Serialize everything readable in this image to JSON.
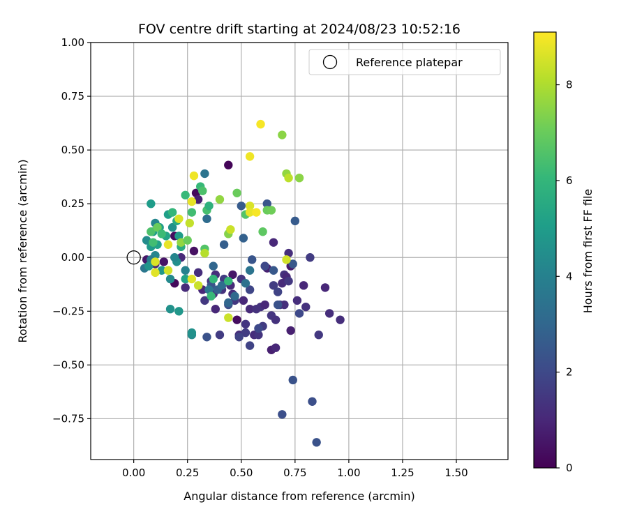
{
  "chart_data": {
    "type": "scatter",
    "title": "FOV centre drift starting at 2024/08/23 10:52:16",
    "xlabel": "Angular distance from reference (arcmin)",
    "ylabel": "Rotation from reference (arcmin)",
    "xlim": [
      -0.2,
      1.74
    ],
    "ylim": [
      -0.94,
      1.0
    ],
    "xticks": [
      "0.00",
      "0.25",
      "0.50",
      "0.75",
      "1.00",
      "1.25",
      "1.50"
    ],
    "yticks": [
      "−0.75",
      "−0.50",
      "−0.25",
      "0.00",
      "0.25",
      "0.50",
      "0.75",
      "1.00"
    ],
    "xtick_values": [
      0,
      0.25,
      0.5,
      0.75,
      1.0,
      1.25,
      1.5
    ],
    "ytick_values": [
      -0.75,
      -0.5,
      -0.25,
      0,
      0.25,
      0.5,
      0.75,
      1.0
    ],
    "grid": true,
    "legend": {
      "placement": "top-right",
      "entries": [
        "Reference platepar"
      ]
    },
    "reference_point": {
      "x": 0,
      "y": 0
    },
    "colorbar": {
      "label": "Hours from first FF file",
      "min": 0,
      "max": 9.1,
      "ticks": [
        "0",
        "2",
        "4",
        "6",
        "8"
      ],
      "tick_values": [
        0,
        2,
        4,
        6,
        8
      ],
      "colormap": "viridis"
    },
    "points": [
      [
        0.06,
        -0.01,
        0.6
      ],
      [
        0.1,
        -0.03,
        0.9
      ],
      [
        0.14,
        -0.02,
        0.5
      ],
      [
        0.19,
        -0.12,
        0.2
      ],
      [
        0.19,
        0.1,
        0.3
      ],
      [
        0.22,
        0.0,
        1.0
      ],
      [
        0.24,
        -0.14,
        1.1
      ],
      [
        0.28,
        0.03,
        0.4
      ],
      [
        0.29,
        0.3,
        0.2
      ],
      [
        0.3,
        0.27,
        0.8
      ],
      [
        0.3,
        -0.07,
        1.2
      ],
      [
        0.32,
        -0.15,
        1.0
      ],
      [
        0.33,
        -0.2,
        1.5
      ],
      [
        0.36,
        -0.11,
        1.3
      ],
      [
        0.37,
        -0.17,
        1.0
      ],
      [
        0.38,
        -0.08,
        1.2
      ],
      [
        0.38,
        -0.24,
        1.0
      ],
      [
        0.41,
        -0.15,
        1.3
      ],
      [
        0.42,
        -0.1,
        1.6
      ],
      [
        0.44,
        0.43,
        0.1
      ],
      [
        0.45,
        -0.13,
        1.1
      ],
      [
        0.46,
        -0.08,
        0.6
      ],
      [
        0.46,
        -0.17,
        1.2
      ],
      [
        0.47,
        -0.2,
        1.5
      ],
      [
        0.48,
        -0.29,
        0.3
      ],
      [
        0.49,
        -0.36,
        1.2
      ],
      [
        0.5,
        -0.1,
        1.4
      ],
      [
        0.51,
        -0.2,
        1.0
      ],
      [
        0.52,
        -0.31,
        1.4
      ],
      [
        0.52,
        -0.35,
        1.6
      ],
      [
        0.54,
        -0.41,
        1.8
      ],
      [
        0.54,
        -0.24,
        1.1
      ],
      [
        0.56,
        -0.36,
        1.2
      ],
      [
        0.57,
        -0.24,
        1.3
      ],
      [
        0.58,
        -0.36,
        1.4
      ],
      [
        0.59,
        -0.23,
        1.3
      ],
      [
        0.6,
        -0.32,
        1.6
      ],
      [
        0.61,
        -0.22,
        1.0
      ],
      [
        0.62,
        -0.05,
        0.8
      ],
      [
        0.64,
        -0.43,
        0.8
      ],
      [
        0.64,
        -0.27,
        1.4
      ],
      [
        0.65,
        0.07,
        1.0
      ],
      [
        0.65,
        -0.13,
        1.6
      ],
      [
        0.66,
        -0.42,
        1.0
      ],
      [
        0.66,
        -0.29,
        1.3
      ],
      [
        0.67,
        -0.16,
        1.8
      ],
      [
        0.68,
        -0.22,
        1.5
      ],
      [
        0.69,
        -0.12,
        1.1
      ],
      [
        0.7,
        -0.22,
        1.2
      ],
      [
        0.7,
        -0.08,
        1.3
      ],
      [
        0.71,
        -0.09,
        1.0
      ],
      [
        0.72,
        0.02,
        1.2
      ],
      [
        0.72,
        -0.11,
        1.5
      ],
      [
        0.73,
        -0.34,
        0.8
      ],
      [
        0.73,
        -0.04,
        0.7
      ],
      [
        0.76,
        -0.2,
        1.2
      ],
      [
        0.77,
        -0.26,
        2.0
      ],
      [
        0.79,
        -0.13,
        1.0
      ],
      [
        0.8,
        -0.23,
        1.3
      ],
      [
        0.82,
        -0.0,
        1.6
      ],
      [
        0.86,
        -0.36,
        1.5
      ],
      [
        0.89,
        -0.14,
        1.0
      ],
      [
        0.91,
        -0.26,
        1.2
      ],
      [
        0.96,
        -0.29,
        1.2
      ],
      [
        0.74,
        -0.57,
        2.3
      ],
      [
        0.83,
        -0.67,
        2.2
      ],
      [
        0.85,
        -0.86,
        2.3
      ],
      [
        0.69,
        -0.73,
        2.2
      ],
      [
        0.34,
        -0.37,
        2.3
      ],
      [
        0.4,
        -0.36,
        1.6
      ],
      [
        0.44,
        -0.22,
        2.2
      ],
      [
        0.49,
        -0.37,
        1.8
      ],
      [
        0.54,
        -0.15,
        1.9
      ],
      [
        0.55,
        -0.01,
        2.4
      ],
      [
        0.58,
        -0.33,
        2.0
      ],
      [
        0.61,
        -0.04,
        2.0
      ],
      [
        0.62,
        0.25,
        2.4
      ],
      [
        0.65,
        -0.06,
        2.5
      ],
      [
        0.67,
        -0.22,
        2.3
      ],
      [
        0.75,
        0.17,
        2.6
      ],
      [
        0.74,
        -0.03,
        2.5
      ],
      [
        0.5,
        0.24,
        2.6
      ],
      [
        0.51,
        0.09,
        2.8
      ],
      [
        0.42,
        0.06,
        2.7
      ],
      [
        0.33,
        0.39,
        3.5
      ],
      [
        0.34,
        0.18,
        3.2
      ],
      [
        0.36,
        -0.13,
        2.4
      ],
      [
        0.37,
        -0.04,
        3.0
      ],
      [
        0.39,
        -0.15,
        2.8
      ],
      [
        0.41,
        -0.13,
        3.2
      ],
      [
        0.44,
        -0.21,
        3.0
      ],
      [
        0.47,
        -0.18,
        3.1
      ],
      [
        0.52,
        -0.12,
        3.4
      ],
      [
        0.54,
        -0.06,
        3.5
      ],
      [
        0.35,
        -0.15,
        3.6
      ],
      [
        0.27,
        -0.36,
        4.4
      ],
      [
        0.27,
        -0.35,
        4.6
      ],
      [
        0.21,
        -0.25,
        4.8
      ],
      [
        0.17,
        -0.24,
        4.6
      ],
      [
        0.24,
        -0.06,
        4.0
      ],
      [
        0.2,
        -0.02,
        4.5
      ],
      [
        0.17,
        -0.1,
        4.3
      ],
      [
        0.1,
        0.01,
        4.2
      ],
      [
        0.08,
        -0.01,
        3.8
      ],
      [
        0.05,
        -0.05,
        3.6
      ],
      [
        0.06,
        0.08,
        4.4
      ],
      [
        0.07,
        -0.04,
        4.7
      ],
      [
        0.08,
        0.05,
        4.9
      ],
      [
        0.09,
        0.12,
        5.0
      ],
      [
        0.1,
        0.16,
        4.2
      ],
      [
        0.11,
        0.06,
        5.2
      ],
      [
        0.12,
        0.14,
        5.0
      ],
      [
        0.13,
        -0.06,
        4.8
      ],
      [
        0.15,
        0.1,
        5.3
      ],
      [
        0.16,
        0.2,
        5.1
      ],
      [
        0.18,
        0.14,
        4.6
      ],
      [
        0.19,
        0.0,
        4.2
      ],
      [
        0.2,
        0.17,
        5.6
      ],
      [
        0.21,
        0.1,
        5.0
      ],
      [
        0.22,
        0.05,
        5.6
      ],
      [
        0.24,
        -0.1,
        5.2
      ],
      [
        0.08,
        0.25,
        5.0
      ],
      [
        0.18,
        0.21,
        6.0
      ],
      [
        0.24,
        0.29,
        6.1
      ],
      [
        0.27,
        0.21,
        6.3
      ],
      [
        0.31,
        0.33,
        6.1
      ],
      [
        0.32,
        0.31,
        6.5
      ],
      [
        0.34,
        0.22,
        6.4
      ],
      [
        0.35,
        0.24,
        5.8
      ],
      [
        0.36,
        -0.18,
        6.1
      ],
      [
        0.33,
        0.04,
        6.6
      ],
      [
        0.37,
        -0.1,
        6.0
      ],
      [
        0.44,
        -0.11,
        6.0
      ],
      [
        0.48,
        0.3,
        7.0
      ],
      [
        0.52,
        0.2,
        6.6
      ],
      [
        0.6,
        0.12,
        6.8
      ],
      [
        0.62,
        0.22,
        7.0
      ],
      [
        0.64,
        0.22,
        7.1
      ],
      [
        0.69,
        0.57,
        7.5
      ],
      [
        0.71,
        0.39,
        7.6
      ],
      [
        0.72,
        0.37,
        8.2
      ],
      [
        0.77,
        0.37,
        7.5
      ],
      [
        0.71,
        -0.01,
        8.5
      ],
      [
        0.4,
        0.27,
        7.6
      ],
      [
        0.44,
        0.11,
        7.4
      ],
      [
        0.45,
        0.13,
        8.4
      ],
      [
        0.44,
        -0.28,
        8.4
      ],
      [
        0.54,
        0.24,
        8.6
      ],
      [
        0.54,
        0.47,
        8.9
      ],
      [
        0.54,
        0.21,
        8.8
      ],
      [
        0.57,
        0.21,
        9.0
      ],
      [
        0.59,
        0.62,
        9.0
      ],
      [
        0.28,
        0.38,
        8.9
      ],
      [
        0.27,
        0.26,
        8.8
      ],
      [
        0.26,
        0.16,
        8.3
      ],
      [
        0.21,
        0.18,
        8.6
      ],
      [
        0.16,
        0.06,
        8.8
      ],
      [
        0.16,
        -0.06,
        8.5
      ],
      [
        0.1,
        -0.02,
        8.6
      ],
      [
        0.1,
        -0.07,
        8.7
      ],
      [
        0.27,
        -0.1,
        8.7
      ],
      [
        0.3,
        -0.13,
        8.4
      ],
      [
        0.33,
        0.02,
        8.1
      ],
      [
        0.22,
        0.07,
        7.6
      ],
      [
        0.25,
        0.08,
        7.0
      ],
      [
        0.08,
        0.12,
        6.5
      ],
      [
        0.09,
        0.07,
        6.3
      ],
      [
        0.11,
        0.14,
        7.0
      ],
      [
        0.13,
        0.11,
        6.2
      ]
    ]
  }
}
